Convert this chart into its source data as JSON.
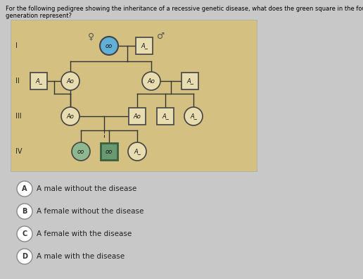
{
  "title_text": "For the following pedigree showing the inheritance of a recessive genetic disease, what does the green square in the fourth\ngeneration represent?",
  "bg_color": "#c8b87a",
  "answers": [
    {
      "letter": "A",
      "text": "A male without the disease"
    },
    {
      "letter": "B",
      "text": "A female without the disease"
    },
    {
      "letter": "C",
      "text": "A female with the disease"
    },
    {
      "letter": "D",
      "text": "A male with the disease"
    }
  ],
  "pedigree_bg": "#d4c080",
  "outer_bg": "#c8c8c8",
  "I_female_color": "#60b0d8",
  "I_male_color": "#e8ddb0",
  "II_left_male_color": "#e8ddb0",
  "II_left_female_color": "#e8ddb0",
  "II_right_female_color": "#e8ddb0",
  "II_right_male_color": "#e8ddb0",
  "III_left_female_color": "#e8ddb0",
  "III_right_male1_color": "#e8ddb0",
  "III_right_male2_color": "#e8ddb0",
  "III_right_female_color": "#e8ddb0",
  "IV_female1_color": "#90b890",
  "IV_male_color": "#6a9870",
  "IV_male_edge_color": "#3a6040",
  "IV_female2_color": "#e8ddb0",
  "line_color": "#333333",
  "label_color": "#222222",
  "gen_label_color": "#222222"
}
